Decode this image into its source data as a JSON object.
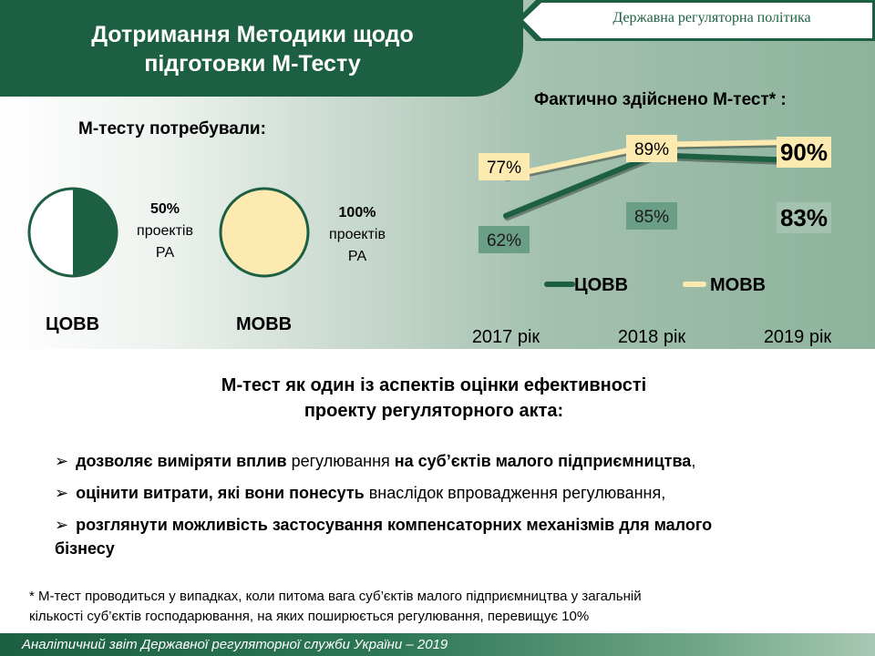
{
  "header": {
    "title_line1": "Дотримання Методики щодо",
    "title_line2": "підготовки М-Тесту",
    "badge": "Державна регуляторна політика"
  },
  "left_panel": {
    "heading": "М-тесту потребували:",
    "pies": [
      {
        "category": "ЦОВВ",
        "percent_text": "50%",
        "line2": "проектів",
        "line3": "РА",
        "fraction": 0.5,
        "fill_color": "#1d5f43"
      },
      {
        "category": "МОВВ",
        "percent_text": "100%",
        "line2": "проектів",
        "line3": "РА",
        "fraction": 1.0,
        "fill_color": "#fdeab0"
      }
    ]
  },
  "right_panel": {
    "heading": "Фактично здійснено М-тест* :"
  },
  "chart_data": [
    {
      "type": "pie",
      "category": "ЦОВВ",
      "slices": [
        {
          "label": "50% проектів РА",
          "value": 50
        },
        {
          "label": "",
          "value": 50
        }
      ]
    },
    {
      "type": "pie",
      "category": "МОВВ",
      "slices": [
        {
          "label": "100% проектів РА",
          "value": 100
        }
      ]
    },
    {
      "type": "line",
      "title": "Фактично здійснено М-тест* :",
      "categories": [
        "2017 рік",
        "2018 рік",
        "2019 рік"
      ],
      "series": [
        {
          "name": "ЦОВВ",
          "values": [
            62,
            85,
            83
          ],
          "labels": [
            "62%",
            "85%",
            "83%"
          ],
          "color": "#1d5f43",
          "label_bg": [
            "#6a9e86",
            "#6a9e86",
            "#a3c2b0"
          ]
        },
        {
          "name": "МОВВ",
          "values": [
            77,
            89,
            90
          ],
          "labels": [
            "77%",
            "89%",
            "90%"
          ],
          "color": "#fdeab0",
          "label_bg": [
            "#fdeab0",
            "#fdeab0",
            "#fdeab0"
          ]
        }
      ],
      "ylim": [
        55,
        100
      ],
      "legend": "bottom-center"
    }
  ],
  "bullets": {
    "heading_line1": "М-тест як один із аспектів оцінки ефективності",
    "heading_line2": "проекту регуляторного акта:",
    "items": [
      {
        "b1": "дозволяє виміряти вплив",
        "t1": " регулювання ",
        "b2": "на суб’єктів малого підприємництва",
        "t2": ","
      },
      {
        "b1": "оцінити витрати, які вони понесуть",
        "t1": " внаслідок впровадження регулювання,",
        "b2": "",
        "t2": ""
      },
      {
        "b1": "розглянути можливість застосування компенсаторних механізмів для малого",
        "t1": " ",
        "b2": "",
        "t2": "бізнесу"
      }
    ]
  },
  "footnote": {
    "line1": "* М-тест проводиться у випадках, коли питома вага суб’єктів малого підприємництва у загальній",
    "line2": "кількості суб’єктів господарювання, на яких поширюється регулювання, перевищує 10%"
  },
  "footer": {
    "text": "Аналітичний звіт Державної регуляторної служби України – 2019"
  },
  "colors": {
    "primary_green": "#1d5f43",
    "cream": "#fdeab0"
  }
}
